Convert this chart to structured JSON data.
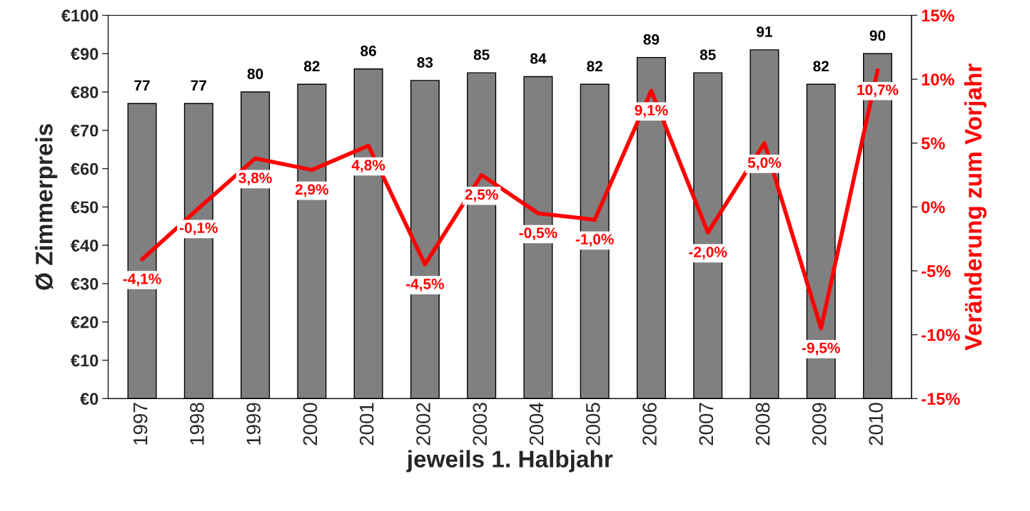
{
  "chart_data": {
    "type": "bar",
    "xlabel": "jeweils 1. Halbjahr",
    "ylabel": "Ø Zimmerpreis",
    "y2label": "Veränderung zum Vorjahr",
    "categories": [
      "1997",
      "1998",
      "1999",
      "2000",
      "2001",
      "2002",
      "2003",
      "2004",
      "2005",
      "2006",
      "2007",
      "2008",
      "2009",
      "2010"
    ],
    "series": [
      {
        "type": "bar",
        "color": "#808080",
        "values": [
          77,
          77,
          80,
          82,
          86,
          83,
          85,
          84,
          82,
          89,
          85,
          91,
          82,
          90
        ],
        "value_labels": [
          "77",
          "77",
          "80",
          "82",
          "86",
          "83",
          "85",
          "84",
          "82",
          "89",
          "85",
          "91",
          "82",
          "90"
        ]
      },
      {
        "type": "line",
        "axis": "y2",
        "color": "#ff0000",
        "values": [
          -4.1,
          -0.1,
          3.8,
          2.9,
          4.8,
          -4.5,
          2.5,
          -0.5,
          -1.0,
          9.1,
          -2.0,
          5.0,
          -9.5,
          10.7
        ],
        "value_labels": [
          "-4,1%",
          "-0,1%",
          "3,8%",
          "2,9%",
          "4,8%",
          "-4,5%",
          "2,5%",
          "-0,5%",
          "-1,0%",
          "9,1%",
          "-2,0%",
          "5,0%",
          "-9,5%",
          "10,7%"
        ]
      }
    ],
    "ylim": [
      0,
      100
    ],
    "yticks": [
      {
        "value": 0,
        "label": "€0"
      },
      {
        "value": 10,
        "label": "€10"
      },
      {
        "value": 20,
        "label": "€20"
      },
      {
        "value": 30,
        "label": "€30"
      },
      {
        "value": 40,
        "label": "€40"
      },
      {
        "value": 50,
        "label": "€50"
      },
      {
        "value": 60,
        "label": "€60"
      },
      {
        "value": 70,
        "label": "€70"
      },
      {
        "value": 80,
        "label": "€80"
      },
      {
        "value": 90,
        "label": "€90"
      },
      {
        "value": 100,
        "label": "€100"
      }
    ],
    "y2lim": [
      -15,
      15
    ],
    "y2ticks": [
      {
        "value": -15,
        "label": "-15%"
      },
      {
        "value": -10,
        "label": "-10%"
      },
      {
        "value": -5,
        "label": "-5%"
      },
      {
        "value": 0,
        "label": "0%"
      },
      {
        "value": 5,
        "label": "5%"
      },
      {
        "value": 10,
        "label": "10%"
      },
      {
        "value": 15,
        "label": "15%"
      }
    ],
    "grid": false,
    "legend": false
  }
}
